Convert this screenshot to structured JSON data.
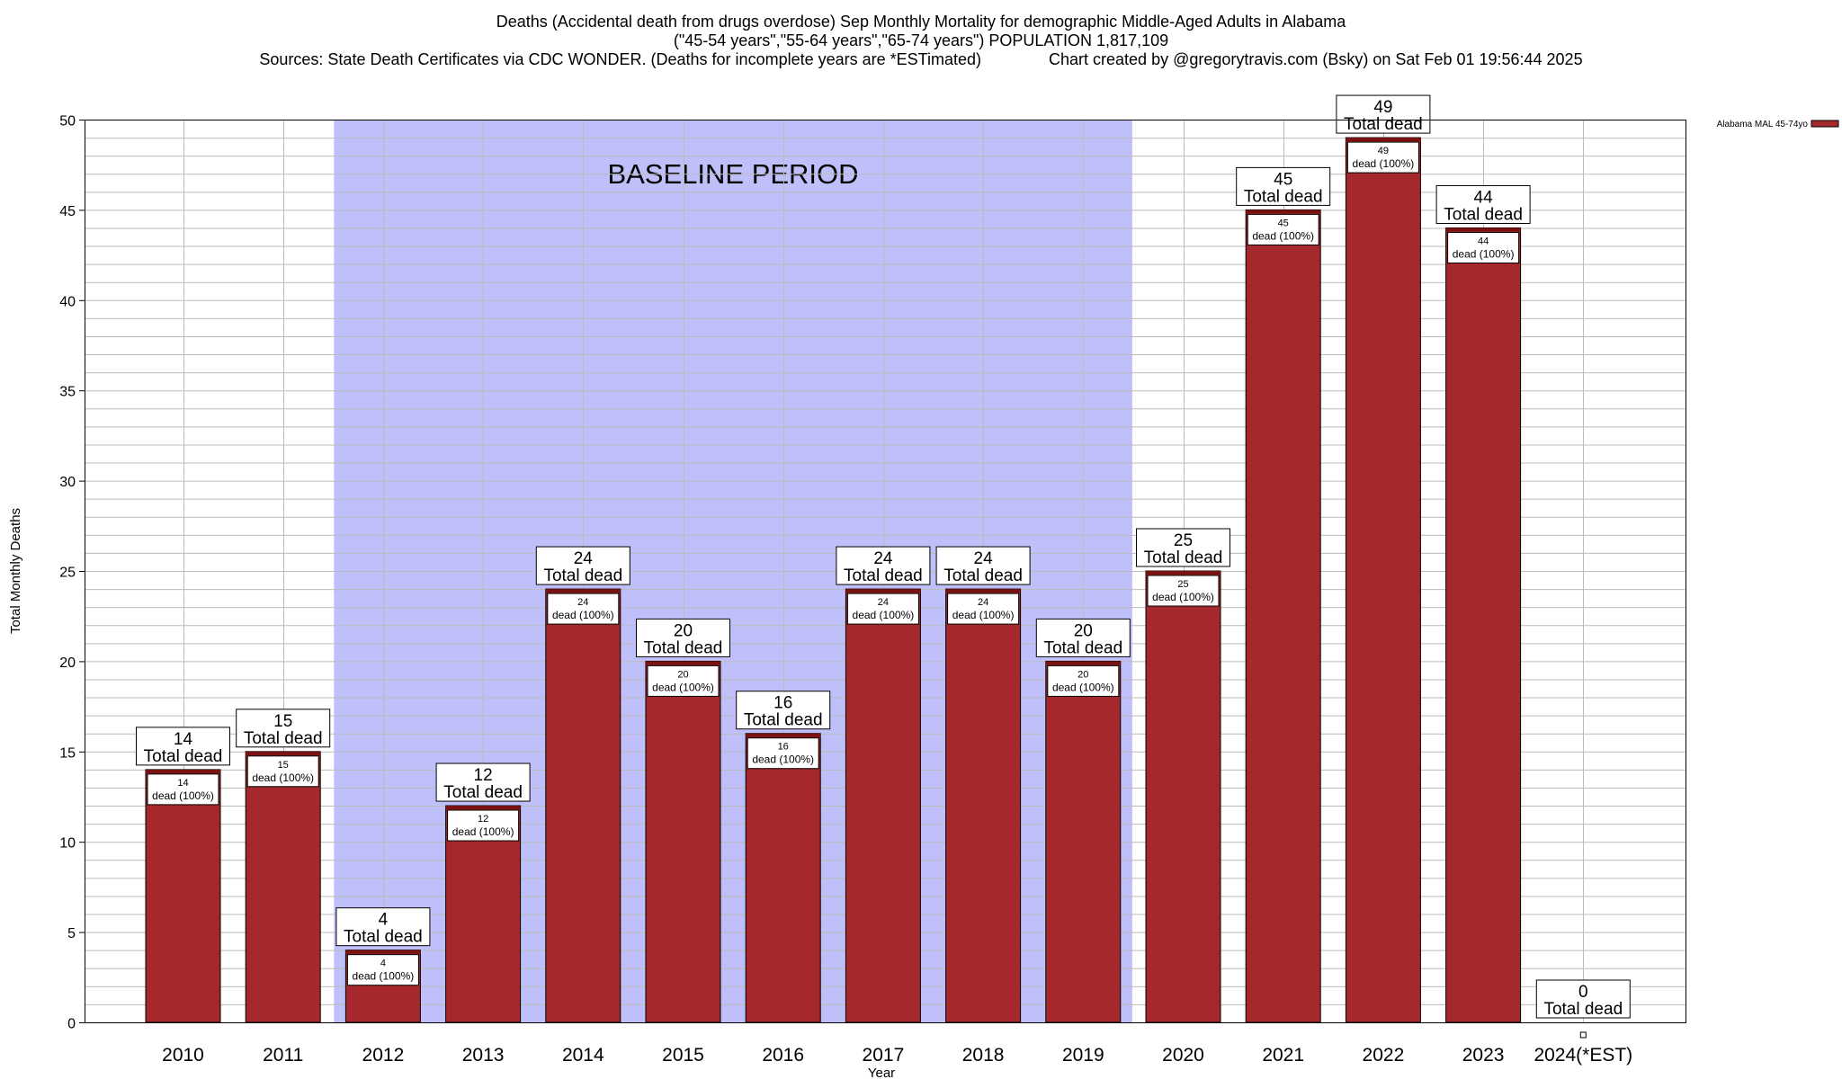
{
  "header": {
    "title_line1": "Deaths (Accidental death from drugs overdose) Sep Monthly Mortality for demographic Middle-Aged Adults in Alabama",
    "title_line2": "(\"45-54 years\",\"55-64 years\",\"65-74 years\") POPULATION 1,817,109",
    "title_line3": "Sources: State Death Certificates via CDC WONDER. (Deaths for incomplete years are *ESTimated)               Chart created by @gregorytravis.com (Bsky) on Sat Feb 01 19:56:44 2025"
  },
  "chart_data": {
    "type": "bar",
    "categories": [
      "2010",
      "2011",
      "2012",
      "2013",
      "2014",
      "2015",
      "2016",
      "2017",
      "2018",
      "2019",
      "2020",
      "2021",
      "2022",
      "2023",
      "2024(*EST)"
    ],
    "series": [
      {
        "name": "Alabama MAL 45-74yo",
        "values": [
          14,
          15,
          4,
          12,
          24,
          20,
          16,
          24,
          24,
          20,
          25,
          45,
          49,
          44,
          0
        ]
      }
    ],
    "xlabel": "Year",
    "ylabel": "Total Monthly Deaths",
    "ylim": [
      0,
      50
    ],
    "yticks": [
      0,
      5,
      10,
      15,
      20,
      25,
      30,
      35,
      40,
      45,
      50
    ],
    "minor_grid_step": 1,
    "grid": true,
    "legend_position": "top-right",
    "top_label_suffix": "Total dead",
    "inner_label_suffix": "dead (100%)",
    "shaded_region": {
      "from": "2012",
      "to": "2019",
      "label": "BASELINE PERIOD",
      "color": "#bfbffa"
    },
    "colors": {
      "bar": "#a4282c",
      "bar_top": "#7a1212",
      "grid": "#bbbbbb"
    }
  }
}
